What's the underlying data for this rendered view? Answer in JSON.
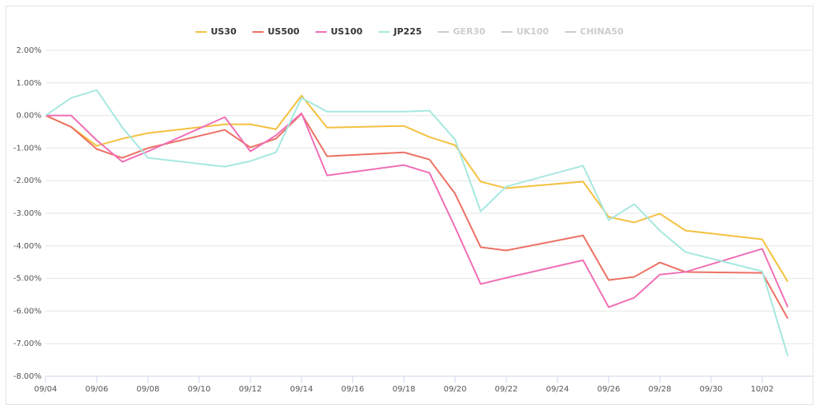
{
  "chart_data": {
    "type": "line",
    "x": [
      "09/04",
      "09/05",
      "09/06",
      "09/07",
      "09/08",
      "09/11",
      "09/12",
      "09/13",
      "09/14",
      "09/15",
      "09/18",
      "09/19",
      "09/20",
      "09/21",
      "09/22",
      "09/25",
      "09/26",
      "09/27",
      "09/28",
      "09/29",
      "10/02",
      "10/03"
    ],
    "series": [
      {
        "name": "US30",
        "color": "#f4c03f",
        "visible": true,
        "values": [
          0,
          -0.35,
          -0.93,
          -0.71,
          -0.54,
          -0.27,
          -0.27,
          -0.42,
          0.61,
          -0.37,
          -0.32,
          -0.66,
          -0.91,
          -2.03,
          -2.23,
          -2.03,
          -3.11,
          -3.28,
          -3.01,
          -3.53,
          -3.8,
          -5.1
        ]
      },
      {
        "name": "US500",
        "color": "#ec7063",
        "visible": true,
        "values": [
          0,
          -0.35,
          -1.03,
          -1.3,
          -1.0,
          -0.44,
          -0.98,
          -0.71,
          0.05,
          -1.25,
          -1.13,
          -1.35,
          -2.4,
          -4.04,
          -4.14,
          -3.68,
          -5.05,
          -4.95,
          -4.51,
          -4.8,
          -4.83,
          -6.23
        ]
      },
      {
        "name": "US100",
        "color": "#f06fb5",
        "visible": true,
        "values": [
          0,
          0,
          -0.76,
          -1.42,
          -1.1,
          -0.05,
          -1.1,
          -0.61,
          0.07,
          -1.84,
          -1.52,
          -1.76,
          -3.43,
          -5.17,
          -4.98,
          -4.44,
          -5.88,
          -5.59,
          -4.88,
          -4.8,
          -4.09,
          -5.88
        ]
      },
      {
        "name": "JP225",
        "color": "#a6e8df",
        "visible": true,
        "values": [
          0,
          0.54,
          0.78,
          -0.37,
          -1.3,
          -1.57,
          -1.4,
          -1.13,
          0.54,
          0.12,
          0.12,
          0.15,
          -0.74,
          -2.94,
          -2.18,
          -1.54,
          -3.21,
          -2.72,
          -3.53,
          -4.19,
          -4.78,
          -7.38
        ]
      },
      {
        "name": "GER30",
        "color": "#cccccc",
        "visible": false,
        "values": [
          null,
          null,
          null,
          null,
          null,
          null,
          null,
          null,
          null,
          null,
          null,
          null,
          null,
          null,
          null,
          null,
          null,
          null,
          null,
          null,
          null,
          null
        ]
      },
      {
        "name": "UK100",
        "color": "#cccccc",
        "visible": false,
        "values": [
          null,
          null,
          null,
          null,
          null,
          null,
          null,
          null,
          null,
          null,
          null,
          null,
          null,
          null,
          null,
          null,
          null,
          null,
          null,
          null,
          null,
          null
        ]
      },
      {
        "name": "CHINA50",
        "color": "#cccccc",
        "visible": false,
        "values": [
          null,
          null,
          null,
          null,
          null,
          null,
          null,
          null,
          null,
          null,
          null,
          null,
          null,
          null,
          null,
          null,
          null,
          null,
          null,
          null,
          null,
          null
        ]
      }
    ],
    "xlim": [
      "09/04",
      "10/04"
    ],
    "xticks": [
      "09/04",
      "09/06",
      "09/08",
      "09/10",
      "09/12",
      "09/14",
      "09/16",
      "09/18",
      "09/20",
      "09/22",
      "09/24",
      "09/26",
      "09/28",
      "09/30",
      "10/02"
    ],
    "ylim": [
      -8,
      2
    ],
    "yticks": [
      {
        "value": 2,
        "label": "2.00%"
      },
      {
        "value": 1,
        "label": "1.00%"
      },
      {
        "value": 0,
        "label": "0.00%"
      },
      {
        "value": -1,
        "label": "-1.00%"
      },
      {
        "value": -2,
        "label": "-2.00%"
      },
      {
        "value": -3,
        "label": "-3.00%"
      },
      {
        "value": -4,
        "label": "-4.00%"
      },
      {
        "value": -5,
        "label": "-5.00%"
      },
      {
        "value": -6,
        "label": "-6.00%"
      },
      {
        "value": -7,
        "label": "-7.00%"
      },
      {
        "value": -8,
        "label": "-8.00%"
      }
    ],
    "grid": true,
    "legend": "top"
  }
}
